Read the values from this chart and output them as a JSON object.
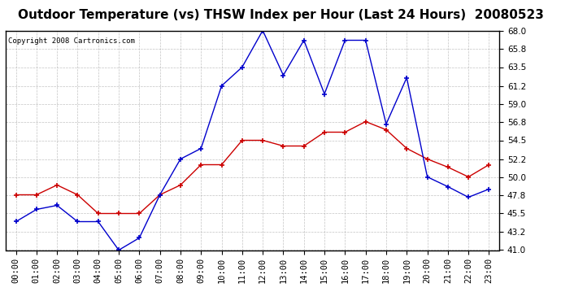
{
  "title": "Outdoor Temperature (vs) THSW Index per Hour (Last 24 Hours)  20080523",
  "copyright": "Copyright 2008 Cartronics.com",
  "x_labels": [
    "00:00",
    "01:00",
    "02:00",
    "03:00",
    "04:00",
    "05:00",
    "06:00",
    "07:00",
    "08:00",
    "09:00",
    "10:00",
    "11:00",
    "12:00",
    "13:00",
    "14:00",
    "15:00",
    "16:00",
    "17:00",
    "18:00",
    "19:00",
    "20:00",
    "21:00",
    "22:00",
    "23:00"
  ],
  "temp_data": [
    47.8,
    47.8,
    49.0,
    47.8,
    45.5,
    45.5,
    45.5,
    47.8,
    49.0,
    51.5,
    51.5,
    54.5,
    54.5,
    53.8,
    53.8,
    55.5,
    55.5,
    56.8,
    55.8,
    53.5,
    52.2,
    51.2,
    50.0,
    51.5
  ],
  "thsw_data": [
    44.5,
    46.0,
    46.5,
    44.5,
    44.5,
    41.0,
    42.5,
    47.8,
    52.2,
    53.5,
    61.2,
    63.5,
    68.0,
    62.5,
    66.8,
    60.2,
    66.8,
    66.8,
    56.5,
    62.2,
    50.0,
    48.8,
    47.5,
    48.5
  ],
  "temp_color": "#cc0000",
  "thsw_color": "#0000cc",
  "ylim_min": 41.0,
  "ylim_max": 68.0,
  "yticks": [
    41.0,
    43.2,
    45.5,
    47.8,
    50.0,
    52.2,
    54.5,
    56.8,
    59.0,
    61.2,
    63.5,
    65.8,
    68.0
  ],
  "bg_color": "#ffffff",
  "plot_bg_color": "#ffffff",
  "grid_color": "#aaaaaa",
  "title_fontsize": 11,
  "tick_fontsize": 7.5,
  "copyright_fontsize": 6.5
}
